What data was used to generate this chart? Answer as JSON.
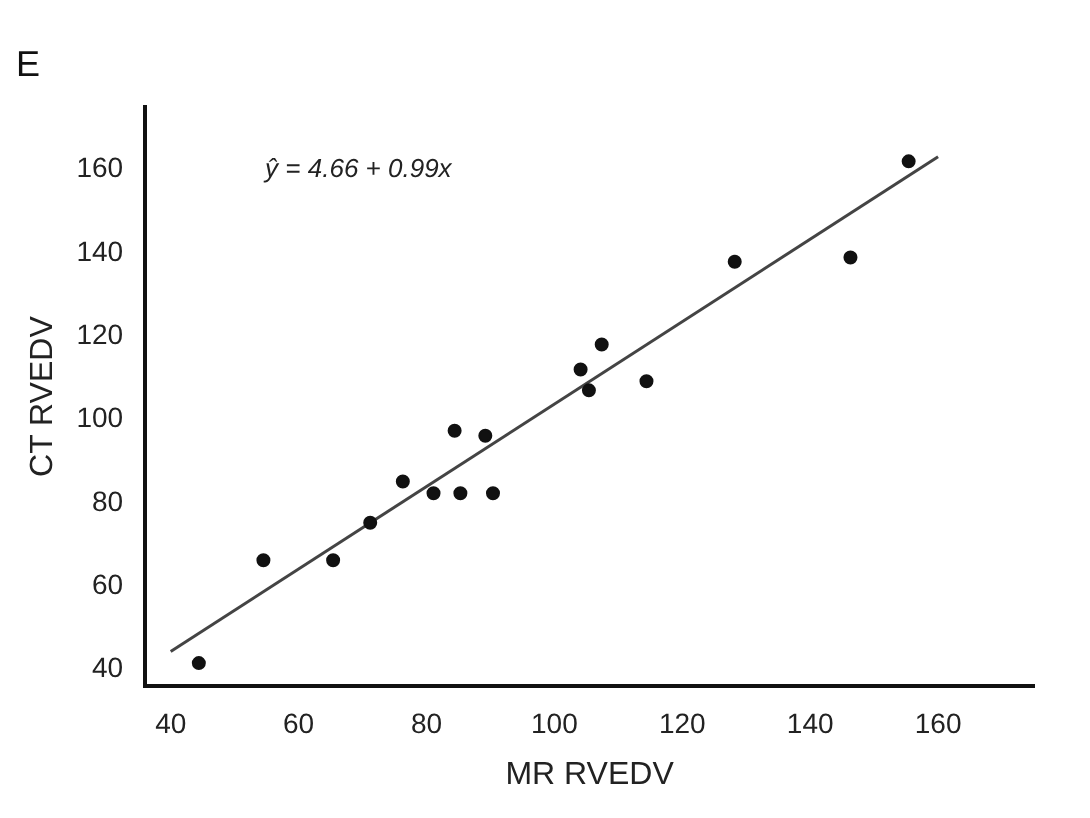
{
  "chart_data": {
    "type": "scatter",
    "title": "E",
    "xlabel": "MR RVEDV",
    "ylabel": "CT RVEDV",
    "annotations": [
      "ŷ = 4.66 + 0.99x"
    ],
    "series": [
      {
        "color": "#111111",
        "marker": "circle",
        "x": [
          44.4,
          54.5,
          65.4,
          71.2,
          76.3,
          81.1,
          84.4,
          85.3,
          89.2,
          90.4,
          104.1,
          105.4,
          107.4,
          114.4,
          128.2,
          146.3,
          155.4
        ],
        "values": [
          41.5,
          66.2,
          66.2,
          75.2,
          85.1,
          82.3,
          97.3,
          82.3,
          96.1,
          82.3,
          112,
          107,
          118,
          109.2,
          137.9,
          138.9,
          162
        ]
      },
      {
        "type": "line",
        "color": "#444444",
        "marker": "none",
        "x": [
          40,
          160
        ],
        "values": [
          44.3,
          163.1
        ]
      }
    ],
    "xlim": [
      36,
      175
    ],
    "xticks": [
      40,
      60,
      80,
      100,
      120,
      140,
      160
    ],
    "ylim": [
      36,
      175
    ],
    "yticks": [
      40,
      60,
      80,
      100,
      120,
      140,
      160
    ],
    "grid": false,
    "legend": false
  }
}
